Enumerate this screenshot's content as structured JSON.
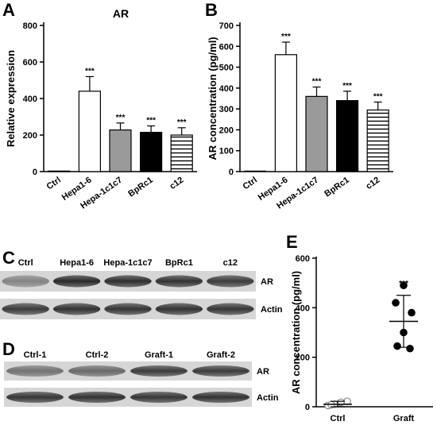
{
  "panels": {
    "a": "A",
    "b": "B",
    "c": "C",
    "d": "D",
    "e": "E"
  },
  "chart_data": [
    {
      "id": "A",
      "type": "bar",
      "title": "AR",
      "ylabel": "Relative expression",
      "ylim": [
        0,
        800
      ],
      "yticks": [
        0,
        200,
        400,
        600,
        800
      ],
      "categories": [
        "Ctrl",
        "Hepa1-6",
        "Hepa-1c1c7",
        "BpRc1",
        "c12"
      ],
      "values": [
        3,
        440,
        228,
        215,
        200
      ],
      "errors": [
        0,
        80,
        38,
        35,
        40
      ],
      "significance": [
        "",
        "***",
        "***",
        "***",
        "***"
      ],
      "fills": [
        "#ffffff",
        "#ffffff",
        "#9a9a9a",
        "#000000",
        "stripes"
      ]
    },
    {
      "id": "B",
      "type": "bar",
      "title": "",
      "ylabel": "AR concentration (pg/ml)",
      "ylim": [
        0,
        700
      ],
      "yticks": [
        0,
        100,
        200,
        300,
        400,
        500,
        600,
        700
      ],
      "categories": [
        "Ctrl",
        "Hepa1-6",
        "Hepa-1c1c7",
        "BpRc1",
        "c12"
      ],
      "values": [
        0,
        560,
        360,
        340,
        295
      ],
      "errors": [
        0,
        60,
        45,
        45,
        38
      ],
      "significance": [
        "",
        "***",
        "***",
        "***",
        "***"
      ],
      "fills": [
        "#ffffff",
        "#ffffff",
        "#9a9a9a",
        "#000000",
        "stripes"
      ]
    },
    {
      "id": "E",
      "type": "scatter",
      "title": "",
      "ylabel": "AR concentration (pg/ml)",
      "ylim": [
        0,
        600
      ],
      "yticks": [
        0,
        200,
        400,
        600
      ],
      "categories": [
        "Ctrl",
        "Graft"
      ],
      "points": [
        {
          "group": "Ctrl",
          "values": [
            5,
            10,
            18,
            22,
            8
          ]
        },
        {
          "group": "Graft",
          "values": [
            490,
            420,
            380,
            300,
            245,
            235
          ]
        }
      ],
      "means": [
        10,
        345
      ],
      "sd": [
        12,
        105
      ],
      "significance": [
        "",
        "***"
      ]
    }
  ],
  "blots": {
    "c": {
      "lanes": [
        "Ctrl",
        "Hepa1-6",
        "Hepa-1c1c7",
        "BpRc1",
        "c12"
      ],
      "rows": [
        "AR",
        "Actin"
      ]
    },
    "d": {
      "lanes": [
        "Ctrl-1",
        "Ctrl-2",
        "Graft-1",
        "Graft-2"
      ],
      "rows": [
        "AR",
        "Actin"
      ]
    }
  }
}
